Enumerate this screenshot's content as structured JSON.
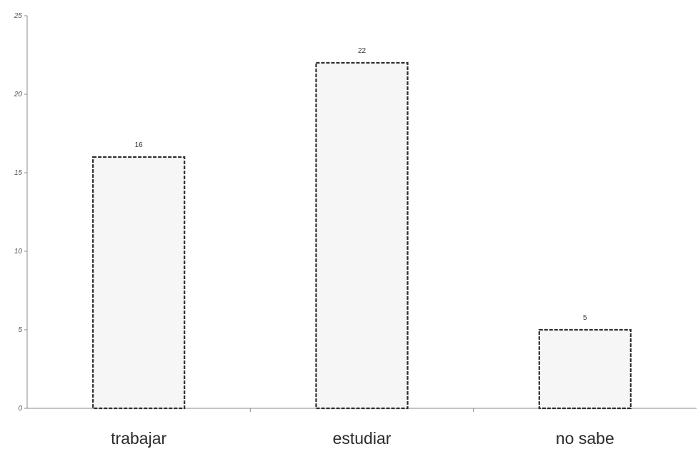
{
  "chart_data": {
    "type": "bar",
    "categories": [
      "trabajar",
      "estudiar",
      "no sabe"
    ],
    "values": [
      16,
      22,
      5
    ],
    "data_labels": [
      "16",
      "22",
      "5"
    ],
    "title": "",
    "xlabel": "",
    "ylabel": "",
    "ylim": [
      0,
      25
    ],
    "yticks": [
      0,
      5,
      10,
      15,
      20,
      25
    ],
    "ytick_labels": [
      "0",
      "5",
      "10",
      "15",
      "20",
      "25"
    ],
    "grid": false,
    "legend": "none",
    "colors": {
      "bar_fill": "#f6f6f6",
      "bar_edge": "#2e2e2e",
      "axis": "#8a8a8a",
      "text": "#2b2b2b"
    }
  }
}
